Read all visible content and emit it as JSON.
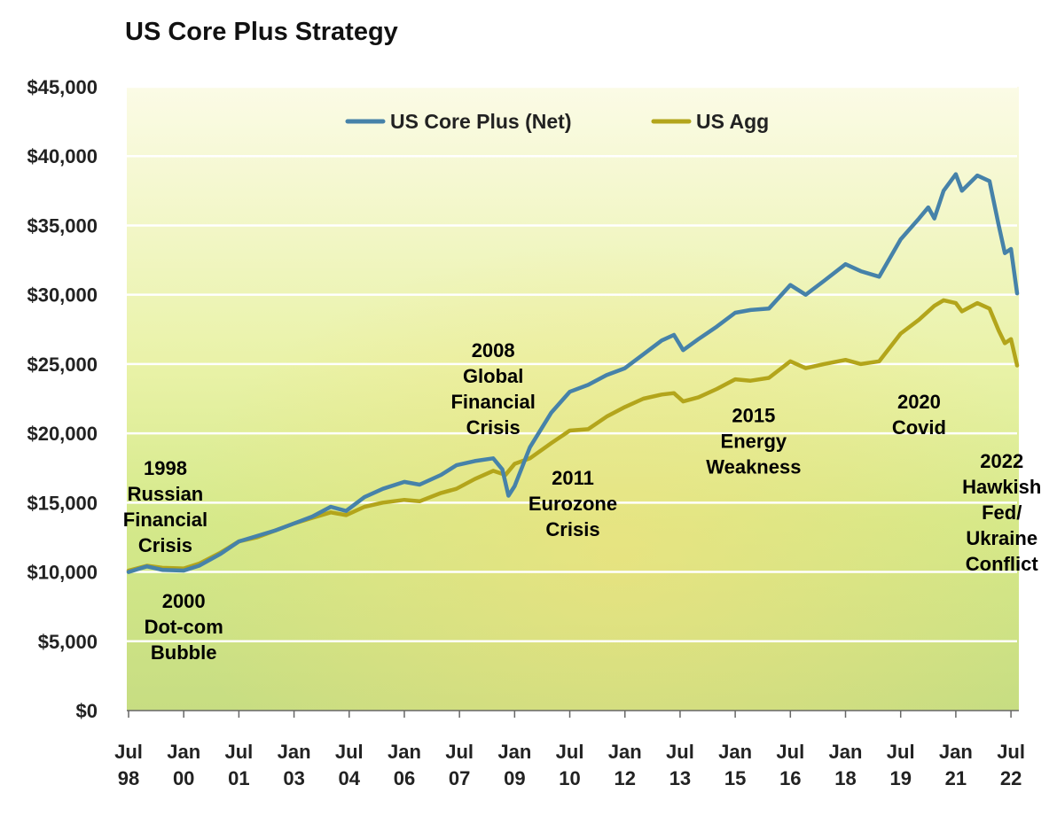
{
  "chart_data": {
    "type": "line",
    "title": "US Core Plus Strategy",
    "xlabel": "",
    "ylabel": "",
    "ylim": [
      0,
      45000
    ],
    "xlim": [
      "1998-07",
      "2022-09"
    ],
    "y_ticks": [
      "$0",
      "$5,000",
      "$10,000",
      "$15,000",
      "$20,000",
      "$25,000",
      "$30,000",
      "$35,000",
      "$40,000",
      "$45,000"
    ],
    "y_tick_values": [
      0,
      5000,
      10000,
      15000,
      20000,
      25000,
      30000,
      35000,
      40000,
      45000
    ],
    "x_ticks": [
      {
        "date": "1998-07",
        "l1": "Jul",
        "l2": "98"
      },
      {
        "date": "2000-01",
        "l1": "Jan",
        "l2": "00"
      },
      {
        "date": "2001-07",
        "l1": "Jul",
        "l2": "01"
      },
      {
        "date": "2003-01",
        "l1": "Jan",
        "l2": "03"
      },
      {
        "date": "2004-07",
        "l1": "Jul",
        "l2": "04"
      },
      {
        "date": "2006-01",
        "l1": "Jan",
        "l2": "06"
      },
      {
        "date": "2007-07",
        "l1": "Jul",
        "l2": "07"
      },
      {
        "date": "2009-01",
        "l1": "Jan",
        "l2": "09"
      },
      {
        "date": "2010-07",
        "l1": "Jul",
        "l2": "10"
      },
      {
        "date": "2012-01",
        "l1": "Jan",
        "l2": "12"
      },
      {
        "date": "2013-07",
        "l1": "Jul",
        "l2": "13"
      },
      {
        "date": "2015-01",
        "l1": "Jan",
        "l2": "15"
      },
      {
        "date": "2016-07",
        "l1": "Jul",
        "l2": "16"
      },
      {
        "date": "2018-01",
        "l1": "Jan",
        "l2": "18"
      },
      {
        "date": "2019-07",
        "l1": "Jul",
        "l2": "19"
      },
      {
        "date": "2021-01",
        "l1": "Jan",
        "l2": "21"
      },
      {
        "date": "2022-07",
        "l1": "Jul",
        "l2": "22"
      }
    ],
    "grid": "horizontal",
    "legend_position": "top-center",
    "series": [
      {
        "name": "US Core Plus (Net)",
        "color": "#4682a9",
        "points": [
          [
            "1998-07",
            10000
          ],
          [
            "1998-10",
            10200
          ],
          [
            "1999-01",
            10400
          ],
          [
            "1999-06",
            10150
          ],
          [
            "2000-01",
            10100
          ],
          [
            "2000-06",
            10450
          ],
          [
            "2001-01",
            11300
          ],
          [
            "2001-07",
            12200
          ],
          [
            "2002-01",
            12600
          ],
          [
            "2002-07",
            13000
          ],
          [
            "2003-01",
            13500
          ],
          [
            "2003-07",
            14000
          ],
          [
            "2004-01",
            14700
          ],
          [
            "2004-06",
            14400
          ],
          [
            "2004-12",
            15400
          ],
          [
            "2005-06",
            16000
          ],
          [
            "2006-01",
            16500
          ],
          [
            "2006-06",
            16300
          ],
          [
            "2007-01",
            17000
          ],
          [
            "2007-06",
            17700
          ],
          [
            "2007-12",
            18000
          ],
          [
            "2008-06",
            18200
          ],
          [
            "2008-09",
            17400
          ],
          [
            "2008-11",
            15500
          ],
          [
            "2009-01",
            16200
          ],
          [
            "2009-06",
            19000
          ],
          [
            "2010-01",
            21500
          ],
          [
            "2010-07",
            23000
          ],
          [
            "2011-01",
            23500
          ],
          [
            "2011-07",
            24200
          ],
          [
            "2012-01",
            24700
          ],
          [
            "2012-07",
            25700
          ],
          [
            "2013-01",
            26700
          ],
          [
            "2013-05",
            27100
          ],
          [
            "2013-08",
            26000
          ],
          [
            "2014-01",
            26800
          ],
          [
            "2014-07",
            27700
          ],
          [
            "2015-01",
            28700
          ],
          [
            "2015-06",
            28900
          ],
          [
            "2015-12",
            29000
          ],
          [
            "2016-07",
            30700
          ],
          [
            "2016-12",
            30000
          ],
          [
            "2017-06",
            31000
          ],
          [
            "2018-01",
            32200
          ],
          [
            "2018-06",
            31700
          ],
          [
            "2018-12",
            31300
          ],
          [
            "2019-07",
            34000
          ],
          [
            "2020-01",
            35500
          ],
          [
            "2020-04",
            36300
          ],
          [
            "2020-06",
            35500
          ],
          [
            "2020-09",
            37500
          ],
          [
            "2021-01",
            38700
          ],
          [
            "2021-03",
            37500
          ],
          [
            "2021-08",
            38600
          ],
          [
            "2021-12",
            38200
          ],
          [
            "2022-03",
            35000
          ],
          [
            "2022-05",
            33000
          ],
          [
            "2022-07",
            33300
          ],
          [
            "2022-09",
            30100
          ]
        ]
      },
      {
        "name": "US Agg",
        "color": "#b3a51b",
        "points": [
          [
            "1998-07",
            10100
          ],
          [
            "1999-01",
            10450
          ],
          [
            "1999-06",
            10300
          ],
          [
            "2000-01",
            10250
          ],
          [
            "2000-06",
            10600
          ],
          [
            "2001-01",
            11400
          ],
          [
            "2001-07",
            12200
          ],
          [
            "2002-01",
            12500
          ],
          [
            "2002-07",
            13000
          ],
          [
            "2003-01",
            13500
          ],
          [
            "2003-07",
            13900
          ],
          [
            "2004-01",
            14300
          ],
          [
            "2004-06",
            14100
          ],
          [
            "2004-12",
            14700
          ],
          [
            "2005-06",
            15000
          ],
          [
            "2006-01",
            15200
          ],
          [
            "2006-06",
            15100
          ],
          [
            "2007-01",
            15700
          ],
          [
            "2007-06",
            16000
          ],
          [
            "2007-12",
            16700
          ],
          [
            "2008-06",
            17300
          ],
          [
            "2008-10",
            17000
          ],
          [
            "2009-01",
            17800
          ],
          [
            "2009-06",
            18200
          ],
          [
            "2010-01",
            19300
          ],
          [
            "2010-07",
            20200
          ],
          [
            "2011-01",
            20300
          ],
          [
            "2011-07",
            21200
          ],
          [
            "2012-01",
            21900
          ],
          [
            "2012-07",
            22500
          ],
          [
            "2013-01",
            22800
          ],
          [
            "2013-05",
            22900
          ],
          [
            "2013-08",
            22300
          ],
          [
            "2014-01",
            22600
          ],
          [
            "2014-07",
            23200
          ],
          [
            "2015-01",
            23900
          ],
          [
            "2015-06",
            23800
          ],
          [
            "2015-12",
            24000
          ],
          [
            "2016-07",
            25200
          ],
          [
            "2016-12",
            24700
          ],
          [
            "2017-06",
            25000
          ],
          [
            "2018-01",
            25300
          ],
          [
            "2018-06",
            25000
          ],
          [
            "2018-12",
            25200
          ],
          [
            "2019-07",
            27200
          ],
          [
            "2020-01",
            28200
          ],
          [
            "2020-06",
            29200
          ],
          [
            "2020-09",
            29600
          ],
          [
            "2021-01",
            29400
          ],
          [
            "2021-03",
            28800
          ],
          [
            "2021-08",
            29400
          ],
          [
            "2021-12",
            29000
          ],
          [
            "2022-03",
            27400
          ],
          [
            "2022-05",
            26500
          ],
          [
            "2022-07",
            26800
          ],
          [
            "2022-09",
            24900
          ]
        ]
      }
    ],
    "annotations": [
      {
        "lines": [
          "1998",
          "Russian",
          "Financial",
          "Crisis"
        ],
        "date": "1999-07",
        "value": 17000
      },
      {
        "lines": [
          "2000",
          "Dot-com",
          "Bubble"
        ],
        "date": "2000-01",
        "value": 7400
      },
      {
        "lines": [
          "2008",
          "Global",
          "Financial",
          "Crisis"
        ],
        "date": "2008-06",
        "value": 25500
      },
      {
        "lines": [
          "2011",
          "Eurozone",
          "Crisis"
        ],
        "date": "2010-08",
        "value": 16300
      },
      {
        "lines": [
          "2015",
          "Energy",
          "Weakness"
        ],
        "date": "2015-07",
        "value": 20800
      },
      {
        "lines": [
          "2020",
          "Covid"
        ],
        "date": "2020-01",
        "value": 21800
      },
      {
        "lines": [
          "2022",
          "Hawkish",
          "Fed/",
          "Ukraine",
          "Conflict"
        ],
        "date": "2022-04",
        "value": 17500
      }
    ]
  }
}
